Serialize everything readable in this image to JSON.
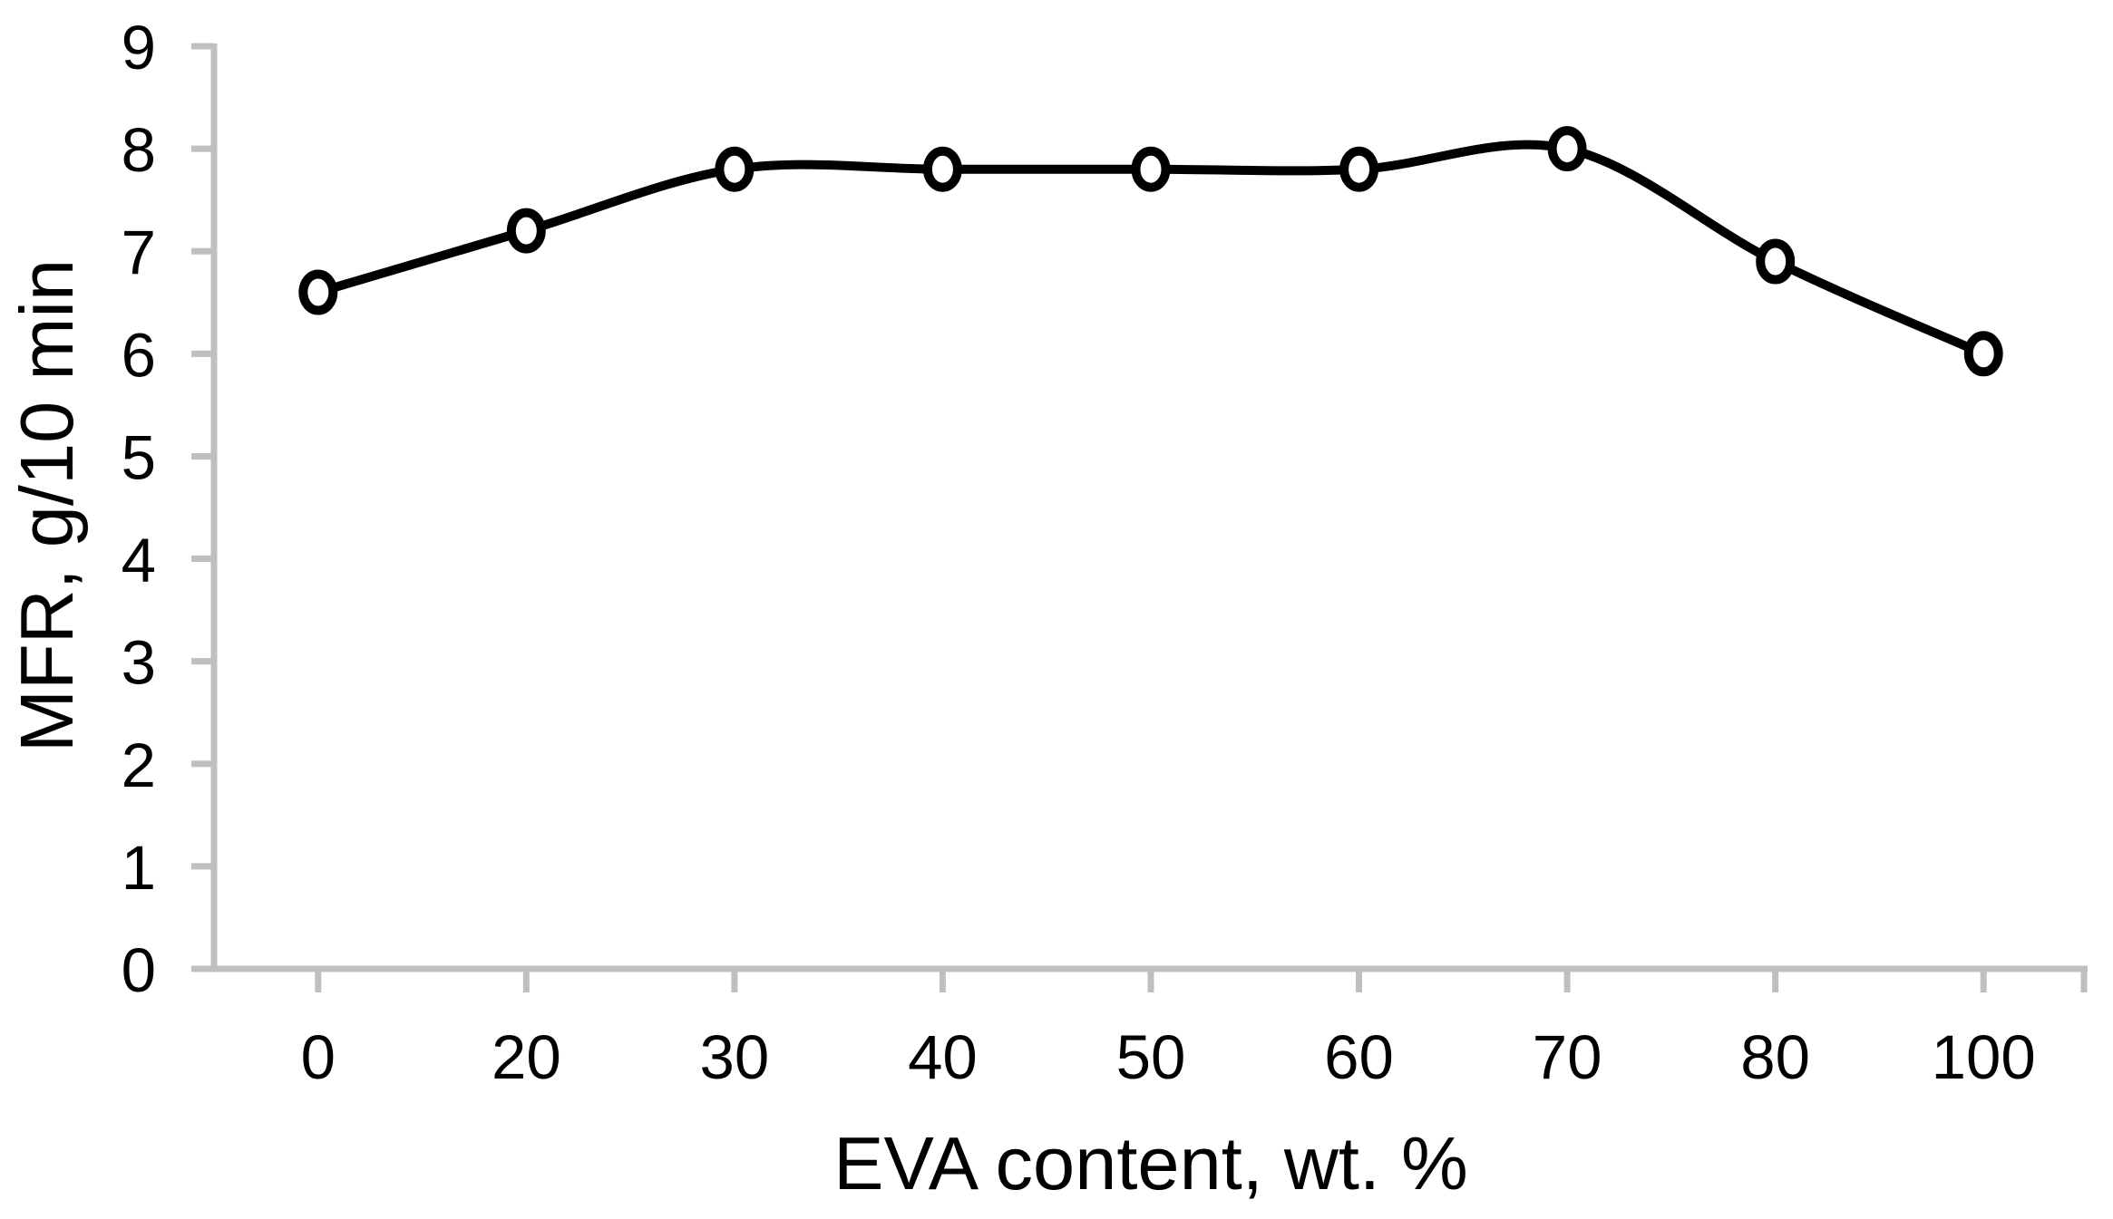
{
  "chart_data": {
    "type": "line",
    "title": "",
    "categories": [
      "0",
      "20",
      "30",
      "40",
      "50",
      "60",
      "70",
      "80",
      "100"
    ],
    "series": [
      {
        "name": "MFR",
        "values": [
          6.6,
          7.2,
          7.8,
          7.8,
          7.8,
          7.8,
          8.0,
          6.9,
          6.0
        ]
      }
    ],
    "xlabel": "EVA content, wt. %",
    "ylabel": "MFR, g/10 min",
    "ylim": [
      0,
      9
    ],
    "yticks": [
      0,
      1,
      2,
      3,
      4,
      5,
      6,
      7,
      8,
      9
    ],
    "grid": false,
    "legend_position": "none",
    "line_smooth": true,
    "marker": "open-circle",
    "colors": {
      "line": "#000000",
      "marker_fill": "#ffffff",
      "marker_stroke": "#000000",
      "axis": "#bfbfbf",
      "text": "#000000",
      "background": "#ffffff"
    }
  }
}
